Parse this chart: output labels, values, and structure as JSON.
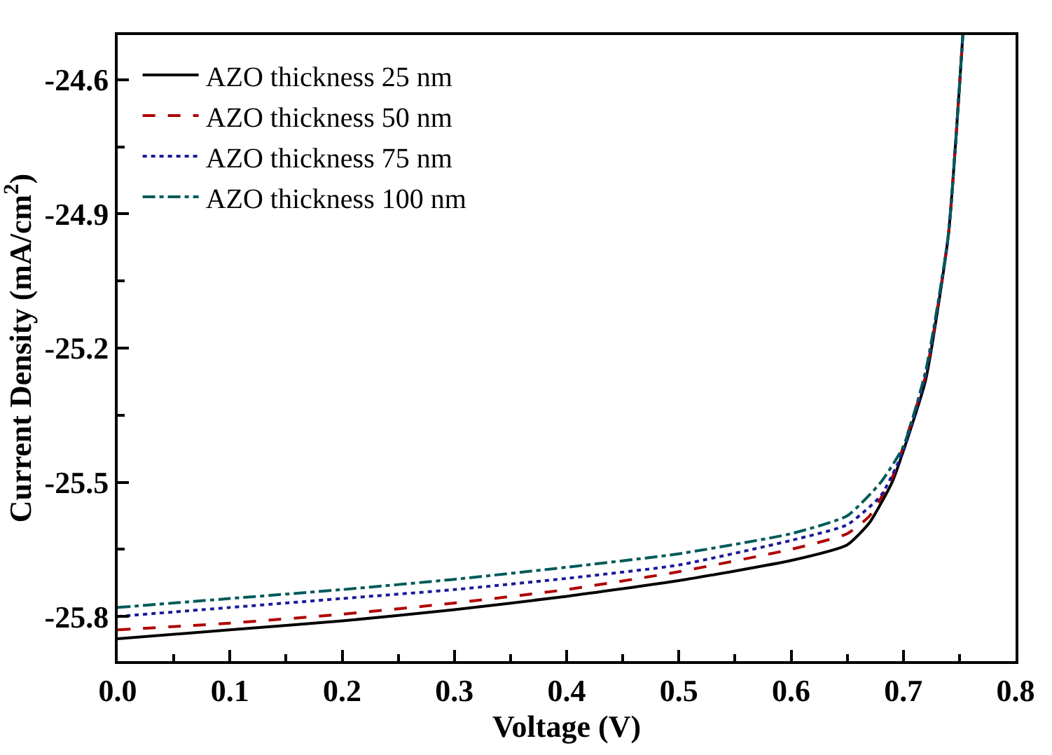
{
  "chart_data": {
    "type": "line",
    "xlabel": "Voltage (V)",
    "ylabel": "Current Density (mA/cm$^{2}$)",
    "xlim": [
      0,
      0.8
    ],
    "xticks": [
      {
        "value": 0,
        "label": "0.0"
      },
      0.1,
      0.2,
      0.3,
      0.4,
      0.5,
      0.6,
      0.7,
      0.8
    ],
    "ylim": [
      -25.9,
      -24.5
    ],
    "yticks": [
      -25.8,
      -25.5,
      -25.2,
      -24.9,
      -24.6
    ],
    "legend": "top left",
    "marker": "none",
    "series": [
      {
        "name": "AZO thickness 25 nm",
        "color": "#000000",
        "line_style": "solid",
        "x": [
          0,
          0.1,
          0.2,
          0.3,
          0.4,
          0.5,
          0.6,
          0.65,
          0.67,
          0.69,
          0.7,
          0.72,
          0.74,
          0.753
        ],
        "values": [
          -25.85,
          -25.83,
          -25.81,
          -25.785,
          -25.755,
          -25.72,
          -25.675,
          -25.64,
          -25.59,
          -25.5,
          -25.43,
          -25.27,
          -24.95,
          -24.5
        ]
      },
      {
        "name": "AZO thickness 50 nm",
        "color": "#b00000",
        "line_style": "dashed",
        "x": [
          0,
          0.1,
          0.2,
          0.3,
          0.4,
          0.5,
          0.6,
          0.65,
          0.67,
          0.69,
          0.7,
          0.72,
          0.74,
          0.753
        ],
        "values": [
          -25.83,
          -25.815,
          -25.795,
          -25.77,
          -25.74,
          -25.7,
          -25.65,
          -25.615,
          -25.575,
          -25.49,
          -25.42,
          -25.26,
          -24.95,
          -24.5
        ]
      },
      {
        "name": "AZO thickness 75 nm",
        "color": "#1a1a9a",
        "line_style": "dotted",
        "x": [
          0,
          0.1,
          0.2,
          0.3,
          0.4,
          0.5,
          0.6,
          0.65,
          0.68,
          0.7,
          0.72,
          0.74,
          0.753
        ],
        "values": [
          -25.8,
          -25.78,
          -25.76,
          -25.74,
          -25.715,
          -25.685,
          -25.63,
          -25.595,
          -25.53,
          -25.43,
          -25.26,
          -24.95,
          -24.5
        ]
      },
      {
        "name": "AZO thickness 100 nm",
        "color": "#005a5a",
        "line_style": "dashdot",
        "x": [
          0,
          0.1,
          0.2,
          0.3,
          0.4,
          0.5,
          0.6,
          0.65,
          0.68,
          0.7,
          0.72,
          0.74,
          0.753
        ],
        "values": [
          -25.78,
          -25.76,
          -25.74,
          -25.717,
          -25.69,
          -25.66,
          -25.615,
          -25.575,
          -25.5,
          -25.42,
          -25.25,
          -24.95,
          -24.5
        ]
      }
    ]
  }
}
